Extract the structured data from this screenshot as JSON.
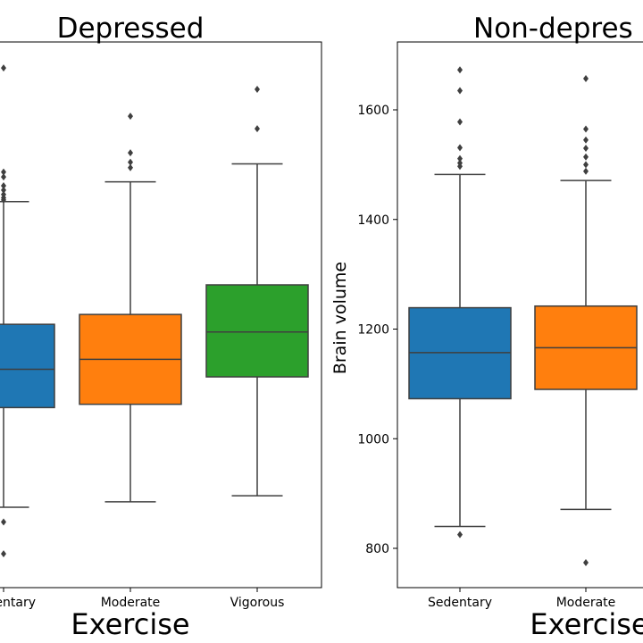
{
  "chart_data": [
    {
      "type": "box",
      "title": "Depressed",
      "xlabel": "Exercise",
      "ylabel": "",
      "ylim": [
        740,
        1720
      ],
      "categories": [
        "Sedentary",
        "Moderate",
        "Vigorous"
      ],
      "series": [
        {
          "category": "Sedentary",
          "color": "#1f77b4",
          "whisker_low": 875,
          "q1": 1057,
          "median": 1127,
          "q3": 1209,
          "whisker_high": 1433,
          "outliers": [
            848,
            790,
            1677,
            1487,
            1478,
            1462,
            1454,
            1446,
            1440,
            1436
          ]
        },
        {
          "category": "Moderate",
          "color": "#ff7f0e",
          "whisker_low": 885,
          "q1": 1063,
          "median": 1145,
          "q3": 1227,
          "whisker_high": 1469,
          "outliers": [
            1589,
            1522,
            1505,
            1495
          ]
        },
        {
          "category": "Vigorous",
          "color": "#2ca02c",
          "whisker_low": 896,
          "q1": 1113,
          "median": 1195,
          "q3": 1281,
          "whisker_high": 1502,
          "outliers": [
            1638,
            1566
          ]
        }
      ]
    },
    {
      "type": "box",
      "title": "Non-depres",
      "xlabel": "Exercise",
      "ylabel": "Brain volume",
      "ylim": [
        730,
        1730
      ],
      "yticks": [
        800,
        1000,
        1200,
        1400,
        1600
      ],
      "categories": [
        "Sedentary",
        "Moderate"
      ],
      "series": [
        {
          "category": "Sedentary",
          "color": "#1f77b4",
          "whisker_low": 840,
          "q1": 1073,
          "median": 1157,
          "q3": 1239,
          "whisker_high": 1482,
          "outliers": [
            825,
            1673,
            1635,
            1578,
            1531,
            1511,
            1503,
            1497
          ]
        },
        {
          "category": "Moderate",
          "color": "#ff7f0e",
          "whisker_low": 871,
          "q1": 1090,
          "median": 1166,
          "q3": 1242,
          "whisker_high": 1471,
          "outliers": [
            774,
            1657,
            1565,
            1545,
            1530,
            1514,
            1500,
            1488
          ]
        }
      ]
    }
  ]
}
